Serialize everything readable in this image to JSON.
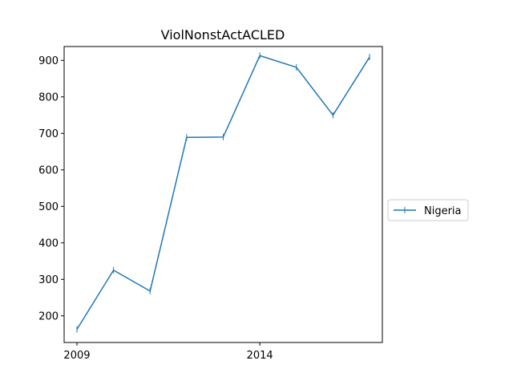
{
  "chart_data": {
    "type": "line",
    "title": "ViolNonstActACLED",
    "xlabel": "",
    "ylabel": "",
    "x": [
      2009,
      2010,
      2011,
      2012,
      2013,
      2014,
      2015,
      2016,
      2017
    ],
    "xlim": [
      2008.65,
      2017.35
    ],
    "ylim": [
      127,
      938
    ],
    "x_ticks": [
      2009,
      2014
    ],
    "x_tick_labels": [
      "2009",
      "2014"
    ],
    "y_ticks": [
      200,
      300,
      400,
      500,
      600,
      700,
      800,
      900
    ],
    "y_tick_labels": [
      "200",
      "300",
      "400",
      "500",
      "600",
      "700",
      "800",
      "900"
    ],
    "grid": false,
    "legend_position": "center-right outside",
    "series": [
      {
        "name": "Nigeria",
        "color": "#1f77b4",
        "marker": "vertical-line",
        "values": [
          163,
          325,
          268,
          689,
          690,
          913,
          881,
          750,
          909
        ]
      }
    ]
  }
}
